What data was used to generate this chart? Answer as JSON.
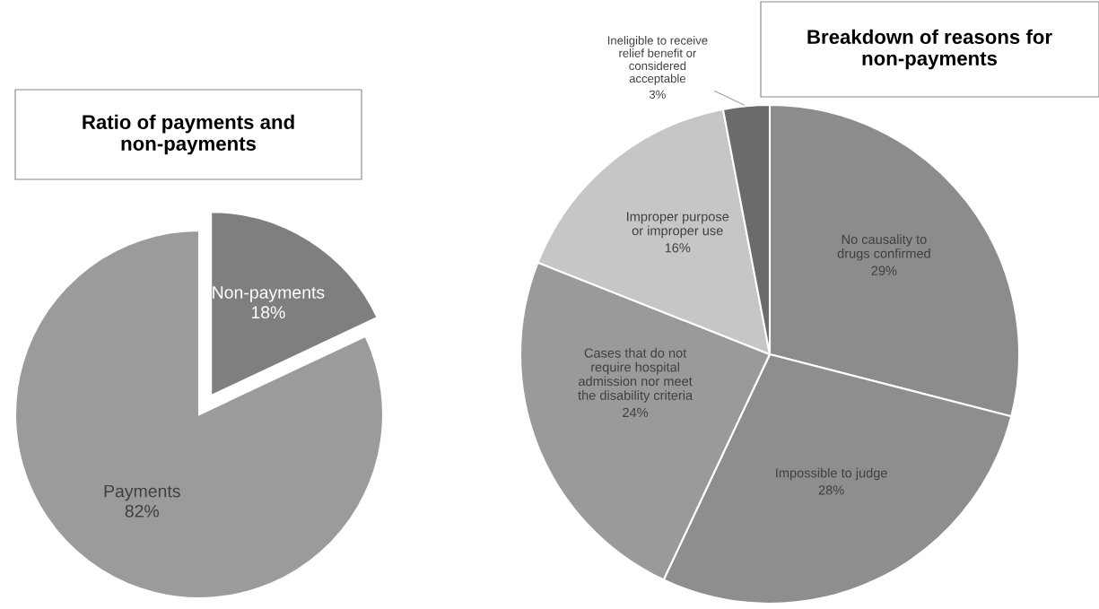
{
  "chart_data": [
    {
      "type": "pie",
      "title": "Ratio of payments and\nnon-payments",
      "categories": [
        "Non-payments",
        "Payments"
      ],
      "values": [
        18,
        82
      ],
      "value_labels": [
        "18%",
        "82%"
      ],
      "colors": [
        "#7f7f7f",
        "#9b9b9b"
      ]
    },
    {
      "type": "pie",
      "title": "Breakdown of reasons for\nnon-payments",
      "categories": [
        "No causality to\ndrugs confirmed",
        "Impossible to judge",
        "Cases that do not\nrequire hospital\nadmission nor meet\nthe disability criteria",
        "Improper purpose\nor improper use",
        "Ineligible to receive\nrelief benefit or\nconsidered\nacceptable"
      ],
      "values": [
        29,
        28,
        24,
        16,
        3
      ],
      "value_labels": [
        "29%",
        "28%",
        "24%",
        "16%",
        "3%"
      ],
      "colors": [
        "#8c8c8c",
        "#8e8e8e",
        "#9a9a9a",
        "#c6c6c6",
        "#6b6b6b"
      ]
    }
  ]
}
